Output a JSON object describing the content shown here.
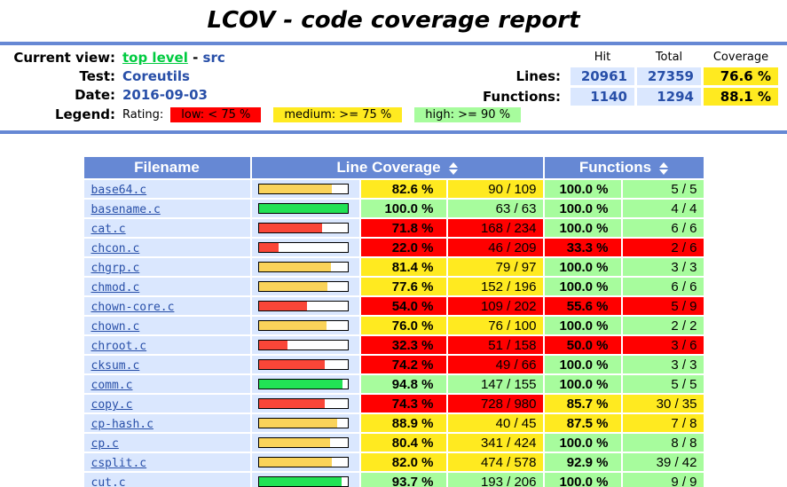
{
  "page": {
    "title": "LCOV - code coverage report"
  },
  "colors": {
    "accent_blue": "#6688D4",
    "cell_blue": "#DAE7FE",
    "link_blue": "#284FA8",
    "visited_green": "#00CB40",
    "rating_low": "#FF0000",
    "rating_medium": "#FFEA20",
    "rating_high": "#A7FC9D",
    "bar_low": "#FA4638",
    "bar_medium": "#FAD35A",
    "bar_high": "#22E255"
  },
  "info": {
    "current_view_label": "Current view:",
    "current_view_link": "top level",
    "current_view_sep": " - ",
    "current_view_current": "src",
    "test_label": "Test:",
    "test_value": "Coreutils",
    "date_label": "Date:",
    "date_value": "2016-09-03",
    "legend_label": "Legend:",
    "rating_label": "Rating:",
    "legend_items": [
      {
        "label": "low: < 75 %",
        "rating": "low"
      },
      {
        "label": "medium: >= 75 %",
        "rating": "medium"
      },
      {
        "label": "high: >= 90 %",
        "rating": "high"
      }
    ],
    "summary": {
      "col_headers": [
        "Hit",
        "Total",
        "Coverage"
      ],
      "rows": [
        {
          "label": "Lines:",
          "hit": "20961",
          "total": "27359",
          "coverage": "76.6 %",
          "rating": "medium"
        },
        {
          "label": "Functions:",
          "hit": "1140",
          "total": "1294",
          "coverage": "88.1 %",
          "rating": "medium"
        }
      ]
    }
  },
  "table": {
    "headers": {
      "filename": "Filename",
      "line_coverage": "Line Coverage",
      "functions": "Functions"
    },
    "files": [
      {
        "name": "base64.c",
        "line_pct": 82.6,
        "line_pct_label": "82.6 %",
        "line_ratio": "90 / 109",
        "line_rating": "medium",
        "func_pct_label": "100.0 %",
        "func_ratio": "5 / 5",
        "func_rating": "high"
      },
      {
        "name": "basename.c",
        "line_pct": 100.0,
        "line_pct_label": "100.0 %",
        "line_ratio": "63 / 63",
        "line_rating": "high",
        "func_pct_label": "100.0 %",
        "func_ratio": "4 / 4",
        "func_rating": "high"
      },
      {
        "name": "cat.c",
        "line_pct": 71.8,
        "line_pct_label": "71.8 %",
        "line_ratio": "168 / 234",
        "line_rating": "low",
        "func_pct_label": "100.0 %",
        "func_ratio": "6 / 6",
        "func_rating": "high"
      },
      {
        "name": "chcon.c",
        "line_pct": 22.0,
        "line_pct_label": "22.0 %",
        "line_ratio": "46 / 209",
        "line_rating": "low",
        "func_pct_label": "33.3 %",
        "func_ratio": "2 / 6",
        "func_rating": "low"
      },
      {
        "name": "chgrp.c",
        "line_pct": 81.4,
        "line_pct_label": "81.4 %",
        "line_ratio": "79 / 97",
        "line_rating": "medium",
        "func_pct_label": "100.0 %",
        "func_ratio": "3 / 3",
        "func_rating": "high"
      },
      {
        "name": "chmod.c",
        "line_pct": 77.6,
        "line_pct_label": "77.6 %",
        "line_ratio": "152 / 196",
        "line_rating": "medium",
        "func_pct_label": "100.0 %",
        "func_ratio": "6 / 6",
        "func_rating": "high"
      },
      {
        "name": "chown-core.c",
        "line_pct": 54.0,
        "line_pct_label": "54.0 %",
        "line_ratio": "109 / 202",
        "line_rating": "low",
        "func_pct_label": "55.6 %",
        "func_ratio": "5 / 9",
        "func_rating": "low"
      },
      {
        "name": "chown.c",
        "line_pct": 76.0,
        "line_pct_label": "76.0 %",
        "line_ratio": "76 / 100",
        "line_rating": "medium",
        "func_pct_label": "100.0 %",
        "func_ratio": "2 / 2",
        "func_rating": "high"
      },
      {
        "name": "chroot.c",
        "line_pct": 32.3,
        "line_pct_label": "32.3 %",
        "line_ratio": "51 / 158",
        "line_rating": "low",
        "func_pct_label": "50.0 %",
        "func_ratio": "3 / 6",
        "func_rating": "low"
      },
      {
        "name": "cksum.c",
        "line_pct": 74.2,
        "line_pct_label": "74.2 %",
        "line_ratio": "49 / 66",
        "line_rating": "low",
        "func_pct_label": "100.0 %",
        "func_ratio": "3 / 3",
        "func_rating": "high"
      },
      {
        "name": "comm.c",
        "line_pct": 94.8,
        "line_pct_label": "94.8 %",
        "line_ratio": "147 / 155",
        "line_rating": "high",
        "func_pct_label": "100.0 %",
        "func_ratio": "5 / 5",
        "func_rating": "high"
      },
      {
        "name": "copy.c",
        "line_pct": 74.3,
        "line_pct_label": "74.3 %",
        "line_ratio": "728 / 980",
        "line_rating": "low",
        "func_pct_label": "85.7 %",
        "func_ratio": "30 / 35",
        "func_rating": "medium"
      },
      {
        "name": "cp-hash.c",
        "line_pct": 88.9,
        "line_pct_label": "88.9 %",
        "line_ratio": "40 / 45",
        "line_rating": "medium",
        "func_pct_label": "87.5 %",
        "func_ratio": "7 / 8",
        "func_rating": "medium"
      },
      {
        "name": "cp.c",
        "line_pct": 80.4,
        "line_pct_label": "80.4 %",
        "line_ratio": "341 / 424",
        "line_rating": "medium",
        "func_pct_label": "100.0 %",
        "func_ratio": "8 / 8",
        "func_rating": "high"
      },
      {
        "name": "csplit.c",
        "line_pct": 82.0,
        "line_pct_label": "82.0 %",
        "line_ratio": "474 / 578",
        "line_rating": "medium",
        "func_pct_label": "92.9 %",
        "func_ratio": "39 / 42",
        "func_rating": "high"
      },
      {
        "name": "cut.c",
        "line_pct": 93.7,
        "line_pct_label": "93.7 %",
        "line_ratio": "193 / 206",
        "line_rating": "high",
        "func_pct_label": "100.0 %",
        "func_ratio": "9 / 9",
        "func_rating": "high"
      }
    ]
  }
}
